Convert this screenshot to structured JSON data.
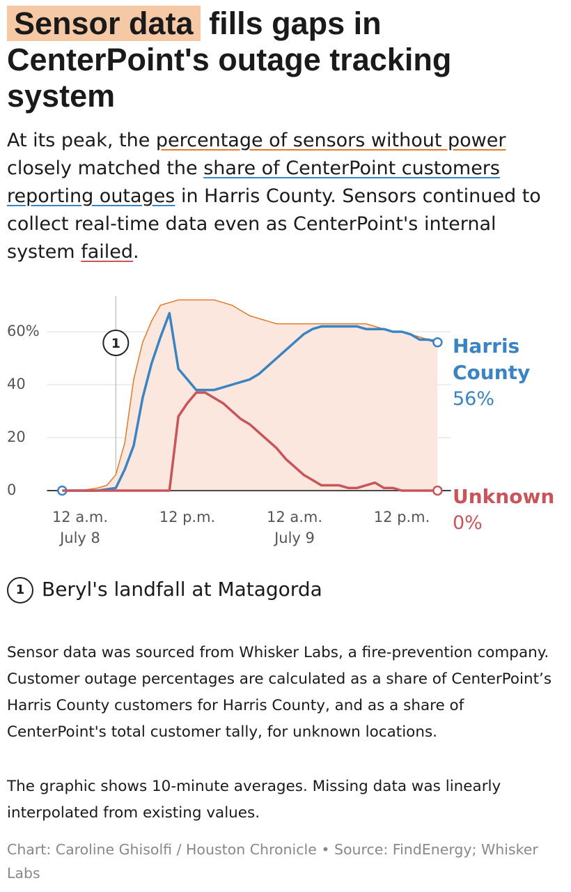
{
  "chart_data": {
    "type": "line",
    "title": [
      "Sensor data",
      " fills gaps in CenterPoint's outage tracking system"
    ],
    "subtitle": [
      "At its peak, the ",
      "percentage of sensors without power",
      " closely matched the ",
      "share of CenterPoint customers reporting outages",
      " in Harris County. Sensors continued to collect real-time data even as CenterPoint's internal system ",
      "failed",
      "."
    ],
    "x": [
      -2,
      -1,
      0,
      1,
      2,
      3,
      4,
      5,
      6,
      7,
      8,
      9,
      10,
      11,
      12,
      13,
      14,
      15,
      16,
      17,
      18,
      19,
      20,
      21,
      22,
      23,
      24,
      25,
      26,
      27,
      28,
      29,
      30,
      31,
      32,
      33,
      34,
      35,
      36,
      37,
      38,
      39,
      40
    ],
    "xlim": [
      -3.7,
      41.5
    ],
    "xticks": [
      {
        "value": 0,
        "label": "12 a.m.\nJuly 8"
      },
      {
        "value": 12,
        "label": "12 p.m."
      },
      {
        "value": 24,
        "label": "12 a.m.\nJuly 9"
      },
      {
        "value": 36,
        "label": "12 p.m."
      }
    ],
    "ylim": [
      -4,
      74
    ],
    "yticks": [
      {
        "value": 60,
        "label": "60%"
      },
      40,
      20,
      0
    ],
    "grid": true,
    "series": [
      {
        "color": "#e07b2a",
        "fill": "#fbe7dd",
        "values": [
          0,
          0,
          0,
          0.5,
          1,
          2,
          6,
          18,
          42,
          56,
          64,
          70,
          71,
          72,
          72,
          72,
          72,
          72,
          71,
          70,
          68,
          66,
          65,
          64,
          63,
          63,
          63,
          63,
          63,
          63,
          63,
          63,
          63,
          63,
          63,
          62,
          61,
          60,
          60,
          59,
          58,
          57,
          57
        ]
      },
      {
        "name": "Harris County",
        "color": "#3a84c4",
        "values": [
          0,
          0,
          0,
          0,
          0,
          0.5,
          1,
          8,
          17,
          35,
          48,
          58,
          67,
          46,
          42,
          38,
          38,
          38,
          39,
          40,
          41,
          42,
          44,
          47,
          50,
          53,
          56,
          59,
          61,
          62,
          62,
          62,
          62,
          62,
          61,
          61,
          61,
          60,
          60,
          59,
          57,
          57,
          56
        ],
        "value_labels": [
          null,
          null,
          null,
          null,
          null,
          null,
          null,
          null,
          null,
          null,
          null,
          null,
          null,
          null,
          null,
          null,
          null,
          null,
          null,
          null,
          null,
          null,
          null,
          null,
          null,
          null,
          null,
          null,
          null,
          null,
          null,
          null,
          null,
          null,
          null,
          null,
          null,
          null,
          null,
          null,
          null,
          null,
          "56%"
        ]
      },
      {
        "name": "Unknown",
        "color": "#c9545a",
        "values": [
          0,
          0,
          0,
          0,
          0,
          0,
          0,
          0,
          0,
          0,
          0,
          0,
          0,
          28,
          33,
          37,
          37,
          35,
          33,
          30,
          27,
          25,
          22,
          19,
          16,
          12,
          9,
          6,
          4,
          2,
          2,
          2,
          1,
          1,
          2,
          3,
          1,
          1,
          0,
          0,
          0,
          0,
          0
        ],
        "value_labels": [
          null,
          null,
          null,
          null,
          null,
          null,
          null,
          null,
          null,
          null,
          null,
          null,
          null,
          null,
          null,
          null,
          null,
          null,
          null,
          null,
          null,
          null,
          null,
          null,
          null,
          null,
          null,
          null,
          null,
          null,
          null,
          null,
          null,
          null,
          null,
          null,
          null,
          null,
          null,
          null,
          null,
          null,
          "0%"
        ]
      }
    ],
    "annotations": [
      {
        "x": 4,
        "label": "1",
        "text": "Beryl's landfall at Matagorda"
      }
    ],
    "notes": [
      "Sensor data was sourced from Whisker Labs, a fire-prevention company. Customer outage percentages are calculated as a share of CenterPoint’s Harris County customers for Harris County, and as a share of CenterPoint's total customer tally, for unknown locations.",
      "The graphic shows 10-minute averages. Missing data was linearly interpolated from existing values."
    ],
    "source": "Chart: Caroline Ghisolfi / Houston Chronicle • Source: FindEnergy; Whisker Labs"
  }
}
